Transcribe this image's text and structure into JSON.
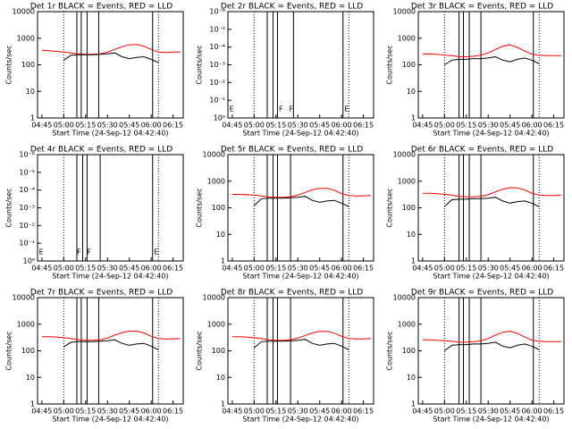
{
  "chart_data": [
    {
      "type": "line",
      "title": "Det 1r BLACK = Events, RED = LLD",
      "xlabel": "Start Time (24-Sep-12 04:42:40)",
      "ylabel": "Counts/sec",
      "log": true,
      "xlim": [
        "04:42",
        "06:22"
      ],
      "xticks": [
        "04:45",
        "05:00",
        "05:15",
        "05:30",
        "05:45",
        "06:00",
        "06:15"
      ],
      "ylim": [
        1,
        10000
      ],
      "yticks": [
        1,
        10,
        100,
        1000,
        10000
      ],
      "x": [
        "04:45",
        "04:50",
        "04:55",
        "05:00",
        "05:05",
        "05:10",
        "05:15",
        "05:20",
        "05:25",
        "05:30",
        "05:35",
        "05:40",
        "05:45",
        "05:50",
        "05:55",
        "06:00",
        "06:05",
        "06:10",
        "06:15",
        "06:20"
      ],
      "series": [
        {
          "name": "RED",
          "color": "#ff0000",
          "values": [
            350,
            340,
            320,
            300,
            280,
            260,
            250,
            250,
            260,
            300,
            380,
            480,
            560,
            580,
            500,
            380,
            300,
            290,
            300,
            300
          ]
        },
        {
          "name": "BLACK",
          "color": "#000000",
          "values": [
            null,
            null,
            null,
            150,
            230,
            240,
            240,
            240,
            250,
            260,
            280,
            200,
            170,
            190,
            200,
            160,
            120,
            null,
            null,
            null
          ]
        }
      ],
      "vlines": [
        "05:09",
        "05:12",
        "05:16",
        "05:24",
        "06:01"
      ],
      "dotted": [
        "05:00",
        "06:05"
      ]
    },
    {
      "type": "line",
      "title": "Det 2r BLACK = Events, RED = LLD",
      "xlabel": "Start Time (24-Sep-12 04:42:40)",
      "ylabel": "Counts/sec",
      "log": true,
      "xlim": [
        "04:42",
        "06:22"
      ],
      "xticks": [
        "04:45",
        "05:00",
        "05:15",
        "05:30",
        "05:45",
        "06:00",
        "06:15"
      ],
      "ylim": [
        1,
        1e-06
      ],
      "yticks": [
        {
          "value": 1,
          "label": "10⁰"
        },
        {
          "value": 0.1,
          "label": "10⁻¹"
        },
        {
          "value": 0.01,
          "label": "10⁻²"
        },
        {
          "value": 0.001,
          "label": "10⁻³"
        },
        {
          "value": 0.0001,
          "label": "10⁻⁴"
        },
        {
          "value": 1e-05,
          "label": "10⁻⁵"
        },
        {
          "value": 1e-06,
          "label": "10⁻⁶"
        }
      ],
      "x": [],
      "series": [],
      "vlines": [
        "05:09",
        "05:13",
        "05:16",
        "05:27",
        "06:01"
      ],
      "dotted": [
        "05:00",
        "06:05"
      ],
      "annotations": [
        {
          "text": "E",
          "x": "04:43"
        },
        {
          "text": "F",
          "x": "05:17"
        },
        {
          "text": "F",
          "x": "05:24"
        },
        {
          "text": "E",
          "x": "06:02"
        }
      ]
    },
    {
      "type": "line",
      "title": "Det 3r BLACK = Events, RED = LLD",
      "xlabel": "Start Time (24-Sep-12 04:42:40)",
      "ylabel": "Counts/sec",
      "log": true,
      "xlim": [
        "04:42",
        "06:22"
      ],
      "xticks": [
        "04:45",
        "05:00",
        "05:15",
        "05:30",
        "05:45",
        "06:00",
        "06:15"
      ],
      "ylim": [
        1,
        10000
      ],
      "yticks": [
        1,
        10,
        100,
        1000,
        10000
      ],
      "x": [
        "04:45",
        "04:50",
        "04:55",
        "05:00",
        "05:05",
        "05:10",
        "05:15",
        "05:20",
        "05:25",
        "05:30",
        "05:35",
        "05:40",
        "05:45",
        "05:50",
        "05:55",
        "06:00",
        "06:05",
        "06:10",
        "06:15",
        "06:20"
      ],
      "series": [
        {
          "name": "RED",
          "color": "#ff0000",
          "values": [
            250,
            260,
            250,
            230,
            220,
            200,
            200,
            210,
            230,
            280,
            380,
            500,
            560,
            450,
            330,
            250,
            230,
            220,
            220,
            220
          ]
        },
        {
          "name": "BLACK",
          "color": "#000000",
          "values": [
            null,
            null,
            null,
            100,
            150,
            160,
            160,
            170,
            170,
            180,
            200,
            150,
            130,
            160,
            180,
            150,
            110,
            null,
            null,
            null
          ]
        }
      ],
      "vlines": [
        "05:10",
        "05:13",
        "05:17",
        "05:25",
        "06:01"
      ],
      "dotted": [
        "05:00",
        "06:05"
      ]
    },
    {
      "type": "line",
      "title": "Det 4r BLACK = Events, RED = LLD",
      "xlabel": "Start Time (24-Sep-12 04:42:40)",
      "ylabel": "Counts/sec",
      "log": true,
      "xlim": [
        "04:42",
        "06:22"
      ],
      "xticks": [
        "04:45",
        "05:00",
        "05:15",
        "05:30",
        "05:45",
        "06:00",
        "06:15"
      ],
      "ylim": [
        1,
        1e-06
      ],
      "yticks": [
        {
          "value": 1,
          "label": "10⁰"
        },
        {
          "value": 0.1,
          "label": "10⁻¹"
        },
        {
          "value": 0.01,
          "label": "10⁻²"
        },
        {
          "value": 0.001,
          "label": "10⁻³"
        },
        {
          "value": 0.0001,
          "label": "10⁻⁴"
        },
        {
          "value": 1e-05,
          "label": "10⁻⁵"
        },
        {
          "value": 1e-06,
          "label": "10⁻⁶"
        }
      ],
      "x": [],
      "series": [],
      "vlines": [
        "05:09",
        "05:13",
        "05:16",
        "05:25",
        "06:01"
      ],
      "dotted": [
        "05:00",
        "06:05"
      ],
      "annotations": [
        {
          "text": "E",
          "x": "04:43"
        },
        {
          "text": "F",
          "x": "05:09"
        },
        {
          "text": "F",
          "x": "05:16"
        },
        {
          "text": "E",
          "x": "06:02"
        }
      ]
    },
    {
      "type": "line",
      "title": "Det 5r BLACK = Events, RED = LLD",
      "xlabel": "Start Time (24-Sep-12 04:42:40)",
      "ylabel": "Counts/sec",
      "log": true,
      "xlim": [
        "04:42",
        "06:22"
      ],
      "xticks": [
        "04:45",
        "05:00",
        "05:15",
        "05:30",
        "05:45",
        "06:00",
        "06:15"
      ],
      "ylim": [
        1,
        10000
      ],
      "yticks": [
        1,
        10,
        100,
        1000,
        10000
      ],
      "x": [
        "04:45",
        "04:50",
        "04:55",
        "05:00",
        "05:05",
        "05:10",
        "05:15",
        "05:20",
        "05:25",
        "05:30",
        "05:35",
        "05:40",
        "05:45",
        "05:50",
        "05:55",
        "06:00",
        "06:05",
        "06:10",
        "06:15",
        "06:20"
      ],
      "series": [
        {
          "name": "RED",
          "color": "#ff0000",
          "values": [
            320,
            320,
            310,
            300,
            280,
            260,
            250,
            250,
            260,
            300,
            380,
            480,
            540,
            540,
            460,
            340,
            290,
            280,
            280,
            290
          ]
        },
        {
          "name": "BLACK",
          "color": "#000000",
          "values": [
            null,
            null,
            null,
            120,
            220,
            230,
            230,
            230,
            240,
            250,
            270,
            190,
            160,
            180,
            190,
            150,
            110,
            null,
            null,
            null
          ]
        }
      ],
      "vlines": [
        "05:09",
        "05:13",
        "05:16",
        "05:25",
        "06:01"
      ],
      "dotted": [
        "05:00",
        "06:05"
      ]
    },
    {
      "type": "line",
      "title": "Det 6r BLACK = Events, RED = LLD",
      "xlabel": "Start Time (24-Sep-12 04:42:40)",
      "ylabel": "Counts/sec",
      "log": true,
      "xlim": [
        "04:42",
        "06:22"
      ],
      "xticks": [
        "04:45",
        "05:00",
        "05:15",
        "05:30",
        "05:45",
        "06:00",
        "06:15"
      ],
      "ylim": [
        1,
        10000
      ],
      "yticks": [
        1,
        10,
        100,
        1000,
        10000
      ],
      "x": [
        "04:45",
        "04:50",
        "04:55",
        "05:00",
        "05:05",
        "05:10",
        "05:15",
        "05:20",
        "05:25",
        "05:30",
        "05:35",
        "05:40",
        "05:45",
        "05:50",
        "05:55",
        "06:00",
        "06:05",
        "06:10",
        "06:15",
        "06:20"
      ],
      "series": [
        {
          "name": "RED",
          "color": "#ff0000",
          "values": [
            350,
            350,
            340,
            320,
            300,
            270,
            260,
            260,
            270,
            310,
            400,
            500,
            570,
            560,
            470,
            350,
            300,
            290,
            290,
            300
          ]
        },
        {
          "name": "BLACK",
          "color": "#000000",
          "values": [
            null,
            null,
            null,
            110,
            200,
            210,
            210,
            220,
            220,
            230,
            250,
            180,
            150,
            170,
            180,
            150,
            110,
            null,
            null,
            null
          ]
        }
      ],
      "vlines": [
        "05:10",
        "05:13",
        "05:17",
        "05:25",
        "06:01"
      ],
      "dotted": [
        "05:00",
        "06:05"
      ]
    },
    {
      "type": "line",
      "title": "Det 7r BLACK = Events, RED = LLD",
      "xlabel": "Start Time (24-Sep-12 04:42:40)",
      "ylabel": "Counts/sec",
      "log": true,
      "xlim": [
        "04:42",
        "06:22"
      ],
      "xticks": [
        "04:45",
        "05:00",
        "05:15",
        "05:30",
        "05:45",
        "06:00",
        "06:15"
      ],
      "ylim": [
        1,
        10000
      ],
      "yticks": [
        1,
        10,
        100,
        1000,
        10000
      ],
      "x": [
        "04:45",
        "04:50",
        "04:55",
        "05:00",
        "05:05",
        "05:10",
        "05:15",
        "05:20",
        "05:25",
        "05:30",
        "05:35",
        "05:40",
        "05:45",
        "05:50",
        "05:55",
        "06:00",
        "06:05",
        "06:10",
        "06:15",
        "06:20"
      ],
      "series": [
        {
          "name": "RED",
          "color": "#ff0000",
          "values": [
            340,
            340,
            330,
            310,
            290,
            260,
            250,
            250,
            260,
            300,
            390,
            480,
            550,
            550,
            470,
            350,
            290,
            280,
            280,
            290
          ]
        },
        {
          "name": "BLACK",
          "color": "#000000",
          "values": [
            null,
            null,
            null,
            140,
            210,
            220,
            220,
            220,
            230,
            240,
            260,
            190,
            160,
            180,
            190,
            150,
            110,
            null,
            null,
            null
          ]
        }
      ],
      "vlines": [
        "05:09",
        "05:12",
        "05:16",
        "05:24",
        "06:01"
      ],
      "dotted": [
        "05:00",
        "06:05"
      ]
    },
    {
      "type": "line",
      "title": "Det 8r BLACK = Events, RED = LLD",
      "xlabel": "Start Time (24-Sep-12 04:42:40)",
      "ylabel": "Counts/sec",
      "log": true,
      "xlim": [
        "04:42",
        "06:22"
      ],
      "xticks": [
        "04:45",
        "05:00",
        "05:15",
        "05:30",
        "05:45",
        "06:00",
        "06:15"
      ],
      "ylim": [
        1,
        10000
      ],
      "yticks": [
        1,
        10,
        100,
        1000,
        10000
      ],
      "x": [
        "04:45",
        "04:50",
        "04:55",
        "05:00",
        "05:05",
        "05:10",
        "05:15",
        "05:20",
        "05:25",
        "05:30",
        "05:35",
        "05:40",
        "05:45",
        "05:50",
        "05:55",
        "06:00",
        "06:05",
        "06:10",
        "06:15",
        "06:20"
      ],
      "series": [
        {
          "name": "RED",
          "color": "#ff0000",
          "values": [
            340,
            340,
            330,
            310,
            290,
            260,
            250,
            250,
            260,
            300,
            380,
            470,
            540,
            540,
            460,
            350,
            290,
            280,
            280,
            290
          ]
        },
        {
          "name": "BLACK",
          "color": "#000000",
          "values": [
            null,
            null,
            null,
            130,
            220,
            230,
            230,
            230,
            240,
            250,
            270,
            190,
            160,
            180,
            190,
            150,
            110,
            null,
            null,
            null
          ]
        }
      ],
      "vlines": [
        "05:09",
        "05:13",
        "05:16",
        "05:25",
        "06:01"
      ],
      "dotted": [
        "05:00",
        "06:05"
      ]
    },
    {
      "type": "line",
      "title": "Det 9r BLACK = Events, RED = LLD",
      "xlabel": "Start Time (24-Sep-12 04:42:40)",
      "ylabel": "Counts/sec",
      "log": true,
      "xlim": [
        "04:42",
        "06:22"
      ],
      "xticks": [
        "04:45",
        "05:00",
        "05:15",
        "05:30",
        "05:45",
        "06:00",
        "06:15"
      ],
      "ylim": [
        1,
        10000
      ],
      "yticks": [
        1,
        10,
        100,
        1000,
        10000
      ],
      "x": [
        "04:45",
        "04:50",
        "04:55",
        "05:00",
        "05:05",
        "05:10",
        "05:15",
        "05:20",
        "05:25",
        "05:30",
        "05:35",
        "05:40",
        "05:45",
        "05:50",
        "05:55",
        "06:00",
        "06:05",
        "06:10",
        "06:15",
        "06:20"
      ],
      "series": [
        {
          "name": "RED",
          "color": "#ff0000",
          "values": [
            260,
            260,
            250,
            240,
            230,
            210,
            210,
            220,
            240,
            290,
            390,
            500,
            550,
            450,
            330,
            250,
            230,
            220,
            220,
            220
          ]
        },
        {
          "name": "BLACK",
          "color": "#000000",
          "values": [
            null,
            null,
            null,
            100,
            160,
            170,
            170,
            180,
            180,
            190,
            210,
            150,
            130,
            160,
            180,
            150,
            110,
            null,
            null,
            null
          ]
        }
      ],
      "vlines": [
        "05:10",
        "05:13",
        "05:17",
        "05:25",
        "06:01"
      ],
      "dotted": [
        "05:00",
        "06:05"
      ]
    }
  ]
}
